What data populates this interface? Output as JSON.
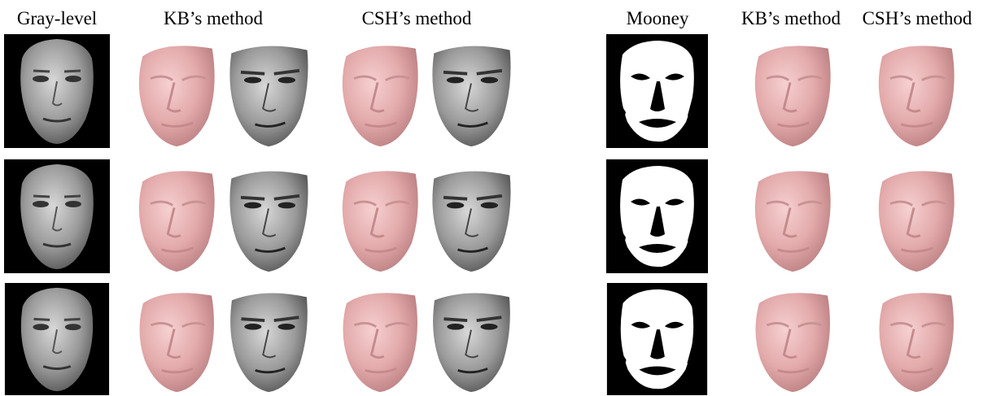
{
  "headers": {
    "left": [
      "Gray-level",
      "KB’s method",
      "CSH’s method"
    ],
    "right": [
      "Mooney",
      "KB’s method",
      "CSH’s method"
    ]
  }
}
